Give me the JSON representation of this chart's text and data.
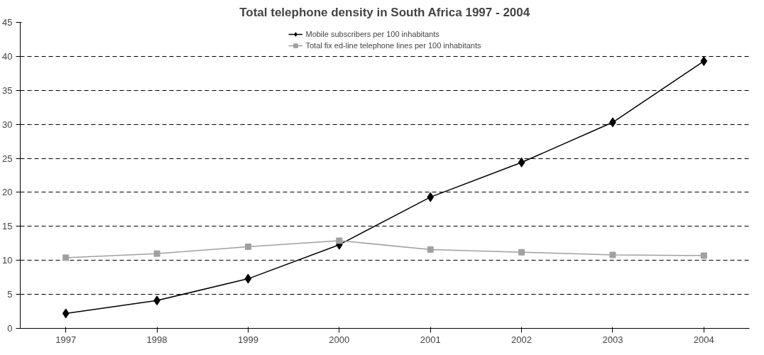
{
  "chart_data": {
    "type": "line",
    "title": "Total telephone density in South Africa 1997 - 2004",
    "categories": [
      "1997",
      "1998",
      "1999",
      "2000",
      "2001",
      "2002",
      "2003",
      "2004"
    ],
    "series": [
      {
        "name": "Mobile subscribers per 100 inhabitants",
        "color": "#000000",
        "marker": "diamond",
        "values": [
          2.2,
          4.1,
          7.3,
          12.3,
          19.3,
          24.4,
          30.3,
          39.3
        ]
      },
      {
        "name": "Total fix ed-line telephone lines per 100 inhabitants",
        "color": "#a0a0a0",
        "marker": "square",
        "values": [
          10.4,
          11.0,
          12.0,
          12.9,
          11.6,
          11.2,
          10.8,
          10.7
        ]
      }
    ],
    "ylim": [
      0,
      45
    ],
    "yticks": [
      0,
      5,
      10,
      15,
      20,
      25,
      30,
      35,
      40,
      45
    ],
    "grid": "y",
    "legend": "top",
    "line_style": "solid"
  }
}
